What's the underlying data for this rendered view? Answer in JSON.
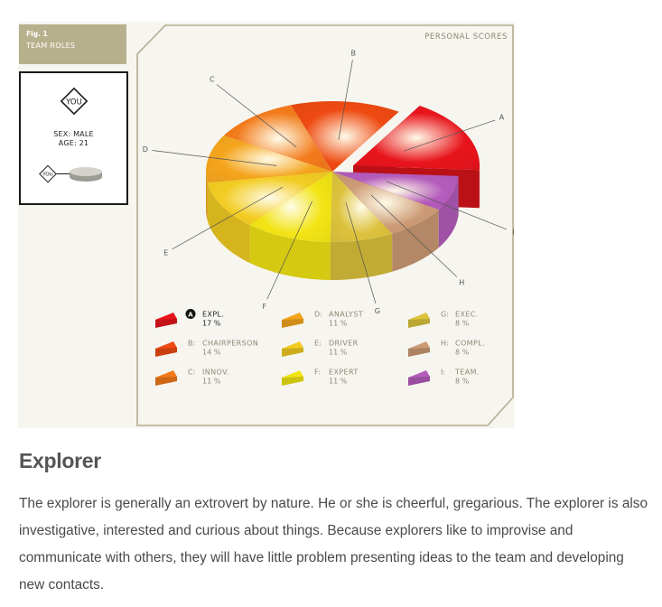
{
  "figure": {
    "number": "Fig. 1",
    "title": "TEAM ROLES",
    "panel_title": "PERSONAL SCORES"
  },
  "you_card": {
    "badge": "YOU",
    "sex": "SEX: MALE",
    "age": "AGE: 21",
    "small_badge": "YOU"
  },
  "chart_data": {
    "type": "pie",
    "title": "PERSONAL SCORES",
    "highlighted": "A",
    "slices": [
      {
        "letter": "A",
        "name": "EXPL.",
        "value": 17,
        "percent_label": "17 %",
        "color": "#e8141c"
      },
      {
        "letter": "B",
        "name": "CHAIRPERSON",
        "value": 14,
        "percent_label": "14 %",
        "color": "#ee4a12"
      },
      {
        "letter": "C",
        "name": "INNOV.",
        "value": 11,
        "percent_label": "11 %",
        "color": "#f27a1a"
      },
      {
        "letter": "D",
        "name": "ANALYST",
        "value": 11,
        "percent_label": "11 %",
        "color": "#f4a51d"
      },
      {
        "letter": "E",
        "name": "DRIVER",
        "value": 11,
        "percent_label": "11 %",
        "color": "#f2cc22"
      },
      {
        "letter": "F",
        "name": "EXPERT",
        "value": 11,
        "percent_label": "11 %",
        "color": "#f2e414"
      },
      {
        "letter": "G",
        "name": "EXEC.",
        "value": 8,
        "percent_label": "8 %",
        "color": "#dcc23c"
      },
      {
        "letter": "H",
        "name": "COMPL.",
        "value": 8,
        "percent_label": "8 %",
        "color": "#cc9a74"
      },
      {
        "letter": "I",
        "name": "TEAM.",
        "value": 8,
        "percent_label": "8 %",
        "color": "#b45cbc"
      }
    ]
  },
  "article": {
    "heading": "Explorer",
    "body": "The explorer is generally an extrovert by nature. He or she is cheerful, gregarious. The explorer is also investigative, interested and curious about things. Because explorers like to improvise and communicate with others, they will have little problem presenting ideas to the team and developing new contacts."
  },
  "colors": {
    "tag_background": "#b7b08c",
    "panel_border": "#b3ad8f",
    "label_text": "#8c8a76"
  }
}
